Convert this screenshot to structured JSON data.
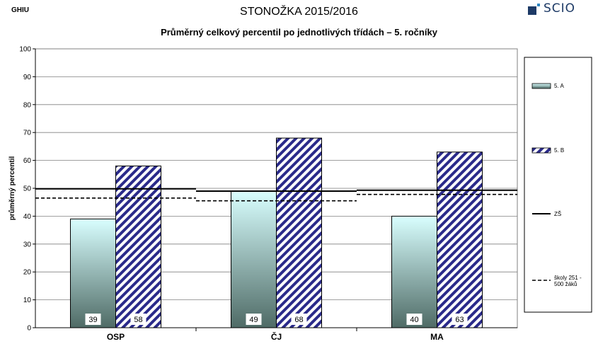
{
  "header": {
    "corner_code": "GHIU",
    "title": "STONOŽKA 2015/2016",
    "subtitle": "Průměrný celkový percentil po jednotlivých třídách – 5. ročníky",
    "brand": "SCIO"
  },
  "colors": {
    "series_a_top": "#d9ffff",
    "series_a_bottom": "#4f6b66",
    "series_b_hatch": "#2a2a8a",
    "series_b_fill": "#ffffff"
  },
  "chart_data": {
    "type": "bar",
    "title": "Průměrný celkový percentil po jednotlivých třídách – 5. ročníky",
    "ylabel": "průměrný percentil",
    "xlabel": "",
    "ylim": [
      0,
      100
    ],
    "yticks": [
      0,
      10,
      20,
      30,
      40,
      50,
      60,
      70,
      80,
      90,
      100
    ],
    "categories": [
      "OSP",
      "ČJ",
      "MA"
    ],
    "series": [
      {
        "name": "5. A",
        "style": "gradient",
        "values": [
          39,
          49,
          40
        ]
      },
      {
        "name": "5. B",
        "style": "hatch",
        "values": [
          58,
          68,
          63
        ]
      }
    ],
    "reference_lines": [
      {
        "name": "ZŠ",
        "style": "solid",
        "values": [
          49.8,
          49.0,
          49.3
        ]
      },
      {
        "name": "školy 251 - 500 žáků",
        "style": "dashed",
        "values": [
          46.5,
          45.5,
          47.8
        ]
      }
    ],
    "legend": {
      "placement": "right"
    },
    "grid": true
  }
}
